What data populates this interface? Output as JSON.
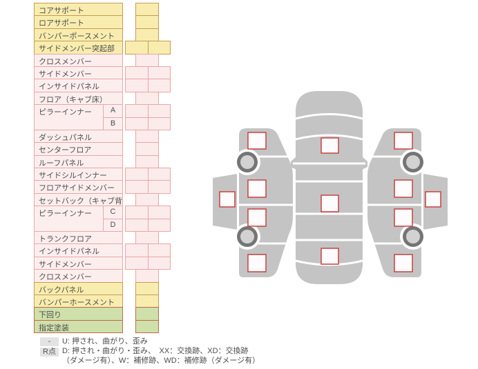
{
  "panel": {
    "rows": [
      {
        "label": "コアサポート",
        "color": "yellow",
        "cells": "single"
      },
      {
        "label": "ロアサポート",
        "color": "yellow",
        "cells": "single"
      },
      {
        "label": "バンパーポースメント",
        "color": "yellow",
        "cells": "single"
      },
      {
        "label": "サイドメンバー突起部",
        "color": "yellow",
        "cells": "double"
      },
      {
        "label": "クロスメンバー",
        "color": "pink",
        "cells": "single"
      },
      {
        "label": "サイドメンバー",
        "color": "pink",
        "cells": "double"
      },
      {
        "label": "インサイドパネル",
        "color": "pink",
        "cells": "double"
      },
      {
        "label": "フロア（キャブ床）",
        "color": "pink",
        "cells": "single"
      },
      {
        "label": "ピラーインナー",
        "sub": "A",
        "color": "pink",
        "cells": "double",
        "group": "start"
      },
      {
        "sub": "B",
        "color": "pink",
        "cells": "double",
        "group": "end"
      },
      {
        "label": "ダッシュパネル",
        "color": "pink",
        "cells": "single"
      },
      {
        "label": "センターフロア",
        "color": "pink",
        "cells": "single"
      },
      {
        "label": "ルーフパネル",
        "color": "pink",
        "cells": "single"
      },
      {
        "label": "サイドシルインナー",
        "color": "pink",
        "cells": "double"
      },
      {
        "label": "フロアサイドメンバー",
        "color": "pink",
        "cells": "double"
      },
      {
        "label": "セットバック（キャブ背）",
        "color": "pink",
        "cells": "single"
      },
      {
        "label": "ピラーインナー",
        "sub": "C",
        "color": "pink",
        "cells": "double",
        "group": "start"
      },
      {
        "sub": "D",
        "color": "pink",
        "cells": "double",
        "group": "end"
      },
      {
        "label": "トランクフロア",
        "color": "pink",
        "cells": "single"
      },
      {
        "label": "インサイドパネル",
        "color": "pink",
        "cells": "double"
      },
      {
        "label": "サイドメンバー",
        "color": "pink",
        "cells": "double"
      },
      {
        "label": "クロスメンバー",
        "color": "pink",
        "cells": "single"
      },
      {
        "label": "バックパネル",
        "color": "yellow",
        "cells": "single"
      },
      {
        "label": "バンパーホースメント",
        "color": "yellow",
        "cells": "single"
      },
      {
        "label": "下回り",
        "color": "green",
        "cells": "single"
      },
      {
        "label": "指定塗装",
        "color": "green",
        "cells": "single"
      }
    ],
    "colors": {
      "yellow_bg": "#f8edae",
      "yellow_border": "#c99a55",
      "pink_bg": "#fdeeee",
      "pink_border": "#e9a6a6",
      "green_bg": "#cfe0ab",
      "green_border": "#bd6b44"
    }
  },
  "legend": {
    "row1_key": "-",
    "row1_text": "U: 押され、曲がり、歪み",
    "row2_key": "R点",
    "row2_text": "D: 押され・曲がり・歪み、　XX：交換跡、XD：交換跡",
    "row3_text": "（ダメージ有）、W：補修跡、WD：補修跡（ダメージ有）"
  },
  "diagram": {
    "body_gray": "#c4c4c4",
    "marker_border": "#c84040",
    "wheel_ring": "#757575",
    "wheel_hub": "#d2d2d2",
    "top_view_markers": 3,
    "left_side_markers": 5,
    "right_side_markers": 5,
    "wheels_per_side": 2
  }
}
